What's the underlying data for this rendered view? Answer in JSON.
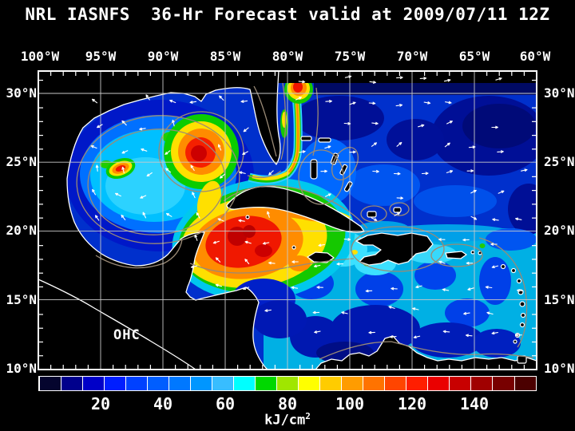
{
  "title": "NRL IASNFS  36-Hr Forecast valid at 2009/07/11 12Z",
  "map": {
    "region_label": "OHC",
    "projection": "lat/lon grid",
    "lon_range_deg_w": [
      100,
      60
    ],
    "lat_range_deg_n": [
      10,
      31.6
    ]
  },
  "axes": {
    "lon_labels": [
      "100°W",
      "95°W",
      "90°W",
      "85°W",
      "80°W",
      "75°W",
      "70°W",
      "65°W",
      "60°W"
    ],
    "lat_labels_left": [
      "30°N",
      "25°N",
      "20°N",
      "15°N",
      "10°N"
    ],
    "lat_labels_right": [
      "30°N",
      "25°N",
      "20°N",
      "15°N",
      "10°N"
    ]
  },
  "colorbar": {
    "unit": "kJ/cm",
    "unit_sup": "2",
    "tick_labels": [
      "20",
      "40",
      "60",
      "80",
      "100",
      "120",
      "140"
    ],
    "tick_values": [
      20,
      40,
      60,
      80,
      100,
      120,
      140
    ],
    "range": [
      0,
      160
    ],
    "colors": [
      "#05052e",
      "#00008c",
      "#0000c8",
      "#001eff",
      "#0041ff",
      "#005eff",
      "#0078ff",
      "#0096ff",
      "#38bdff",
      "#00ffff",
      "#00d800",
      "#a0e600",
      "#ffff00",
      "#ffcc00",
      "#ff9c00",
      "#ff7300",
      "#ff4500",
      "#ff1e00",
      "#ea0000",
      "#c80000",
      "#a00000",
      "#780000",
      "#4b0000"
    ]
  },
  "styles": {
    "grid_color": "#c9c9c9",
    "coast_color": "#ffffff",
    "bathy_contour_color": "#9a8a76",
    "vector_color": "#ffffff",
    "land_color": "#000000"
  }
}
